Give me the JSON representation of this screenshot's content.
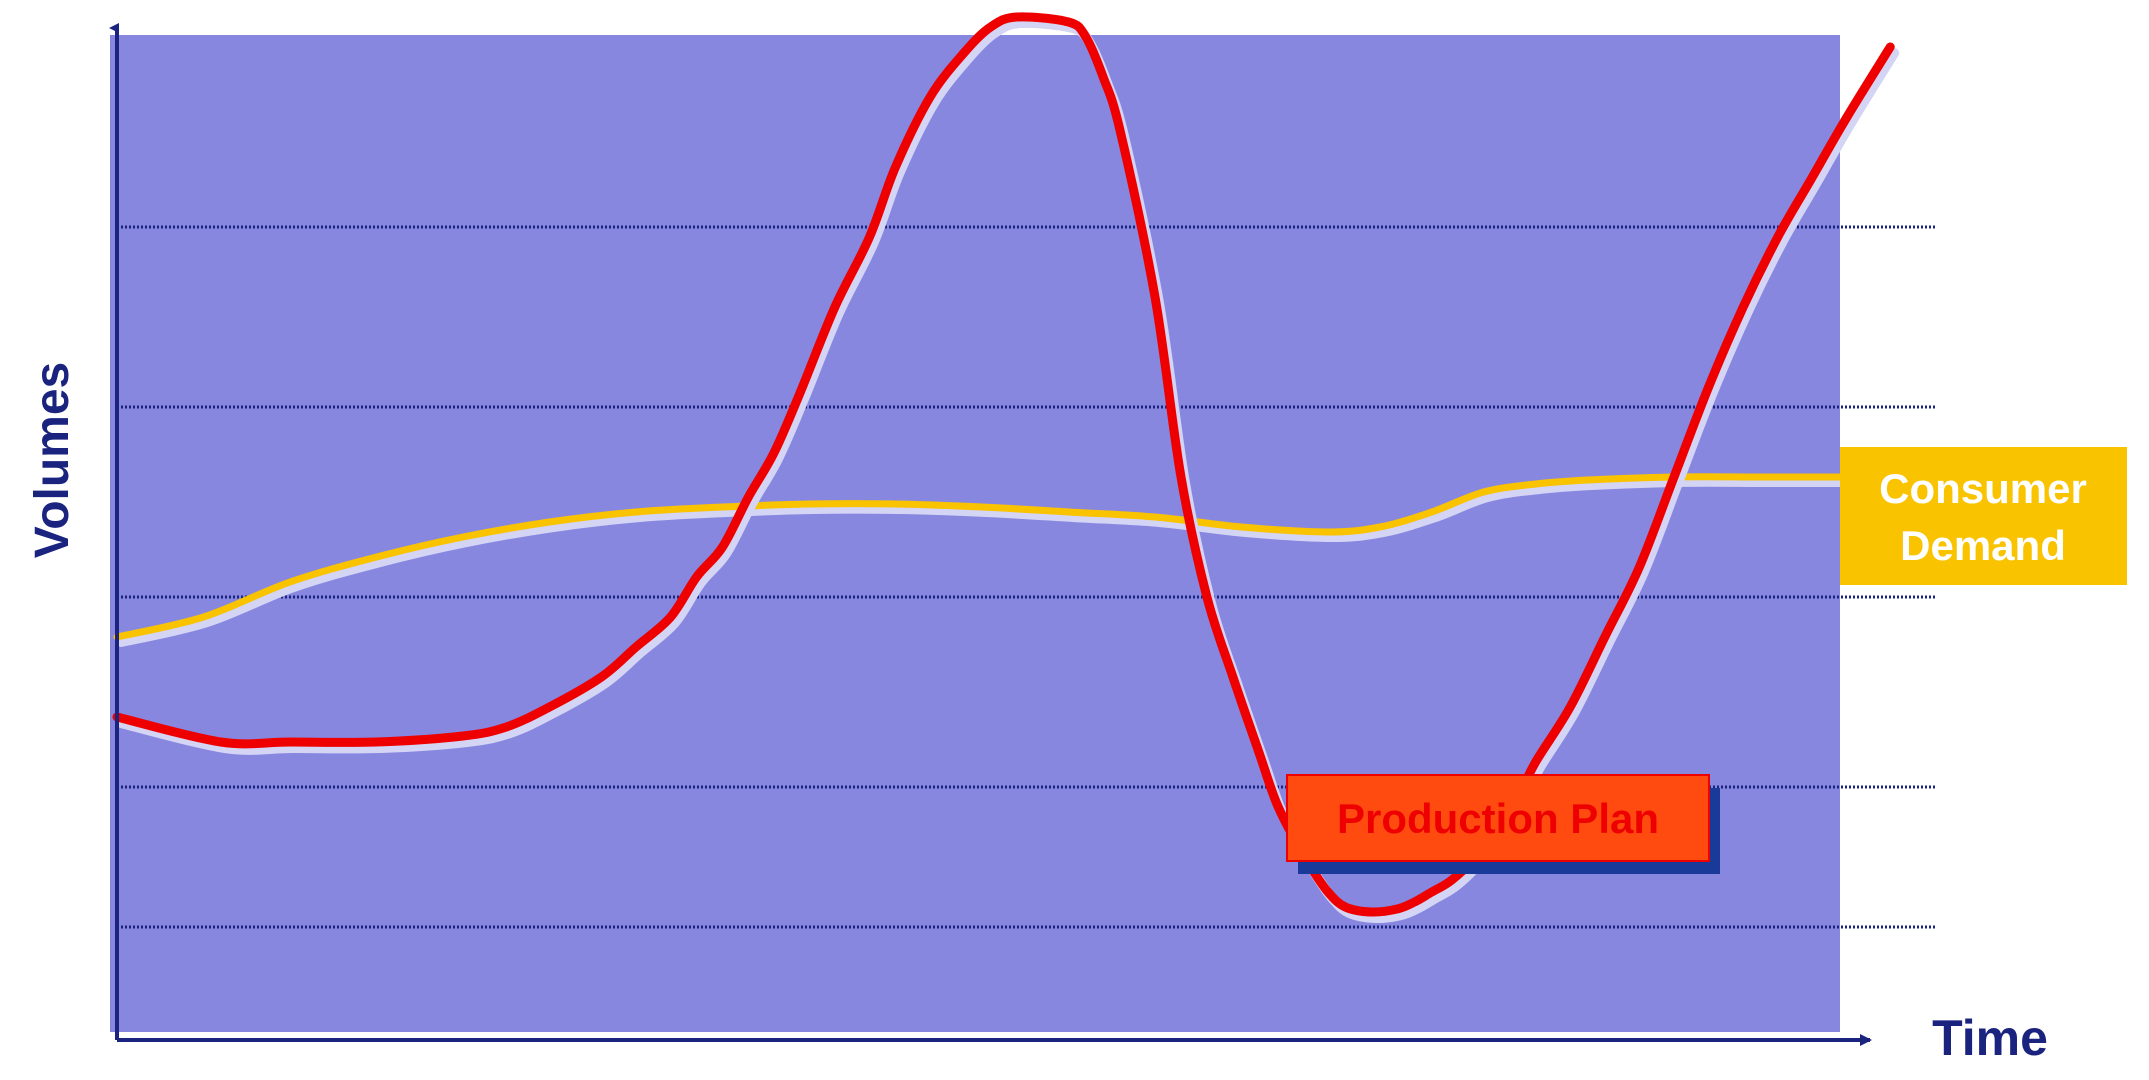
{
  "chart_data": {
    "type": "line",
    "title": "",
    "xlabel": "Time",
    "ylabel": "Volumes",
    "ylim": [
      0,
      100
    ],
    "grid": true,
    "gridlines": [
      80,
      62,
      43,
      24,
      10
    ],
    "series": [
      {
        "name": "Consumer Demand",
        "color": "#f9c300",
        "label_lines": [
          "Consumer",
          "Demand"
        ],
        "x": [
          0,
          5,
          10,
          15,
          20,
          25,
          30,
          35,
          40,
          45,
          50,
          55,
          60,
          65,
          70,
          73,
          76,
          79,
          82,
          85,
          90,
          95,
          100
        ],
        "y": [
          39,
          41,
          44.5,
          47,
          49,
          50.5,
          51.5,
          52,
          52.3,
          52.3,
          52,
          51.5,
          51,
          50,
          49.5,
          50,
          51.5,
          53.5,
          54.3,
          54.7,
          55,
          55,
          55
        ]
      },
      {
        "name": "Production Plan",
        "color": "#ee0000",
        "label_lines": [
          "Production Plan"
        ],
        "x": [
          0,
          6,
          10,
          15,
          20,
          22.5,
          25,
          28,
          30,
          32,
          33.5,
          35,
          36.5,
          38,
          39.5,
          41.5,
          43.5,
          45,
          47,
          49,
          50.5,
          52,
          55,
          56,
          57,
          58,
          60,
          61.5,
          63,
          64.5,
          66,
          67,
          68,
          69,
          70,
          71,
          72.5,
          74,
          75,
          76,
          77,
          78,
          79,
          80,
          81,
          82,
          84,
          86,
          88,
          90,
          92,
          94,
          96,
          98,
          100,
          102.5
        ],
        "y": [
          31,
          28.5,
          28.5,
          28.5,
          29.1,
          30,
          32,
          35,
          38,
          41,
          45,
          48,
          53,
          57.5,
          63.5,
          72,
          79,
          86,
          93,
          97.5,
          100,
          101,
          100.5,
          99,
          95,
          89.5,
          73,
          55,
          43,
          35,
          27.5,
          22.5,
          19,
          16,
          13.5,
          12,
          11.5,
          11.8,
          12.5,
          13.5,
          14.5,
          16,
          18,
          20.5,
          23,
          26.5,
          32,
          39,
          46,
          55,
          64,
          72,
          79,
          85,
          91,
          98
        ]
      }
    ]
  }
}
